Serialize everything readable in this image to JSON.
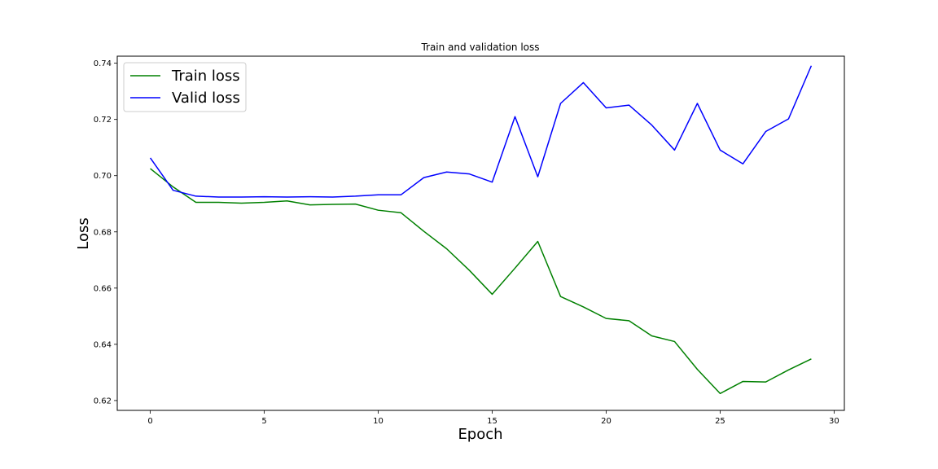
{
  "chart_data": {
    "type": "line",
    "title": "Train and validation loss",
    "xlabel": "Epoch",
    "ylabel": "Loss",
    "xlim": [
      -1.45,
      30.45
    ],
    "ylim": [
      0.6165,
      0.7425
    ],
    "xticks": [
      0,
      5,
      10,
      15,
      20,
      25,
      30
    ],
    "yticks": [
      0.62,
      0.64,
      0.66,
      0.68,
      0.7,
      0.72,
      0.74
    ],
    "ytick_labels": [
      "0.62",
      "0.64",
      "0.66",
      "0.68",
      "0.70",
      "0.72",
      "0.74"
    ],
    "grid": false,
    "legend_position": "top-left",
    "x": [
      0,
      1,
      2,
      3,
      4,
      5,
      6,
      7,
      8,
      9,
      10,
      11,
      12,
      13,
      14,
      15,
      16,
      17,
      18,
      19,
      20,
      21,
      22,
      23,
      24,
      25,
      26,
      27,
      28,
      29
    ],
    "series": [
      {
        "name": "Train loss",
        "color": "#008000",
        "values": [
          0.7025,
          0.696,
          0.6905,
          0.6905,
          0.6902,
          0.6905,
          0.691,
          0.6896,
          0.6898,
          0.6899,
          0.6877,
          0.6868,
          0.6802,
          0.674,
          0.6663,
          0.6578,
          0.6671,
          0.6766,
          0.657,
          0.6533,
          0.6492,
          0.6484,
          0.643,
          0.641,
          0.6311,
          0.6225,
          0.6268,
          0.6266,
          0.6309,
          0.6348
        ]
      },
      {
        "name": "Valid loss",
        "color": "#0000ff",
        "values": [
          0.7063,
          0.6948,
          0.6927,
          0.6924,
          0.6924,
          0.6925,
          0.6924,
          0.6925,
          0.6924,
          0.6927,
          0.6932,
          0.6932,
          0.6993,
          0.7013,
          0.7006,
          0.6977,
          0.721,
          0.6996,
          0.7257,
          0.7331,
          0.7241,
          0.7251,
          0.718,
          0.7091,
          0.7257,
          0.7091,
          0.7042,
          0.7157,
          0.7202,
          0.7391
        ]
      }
    ]
  }
}
